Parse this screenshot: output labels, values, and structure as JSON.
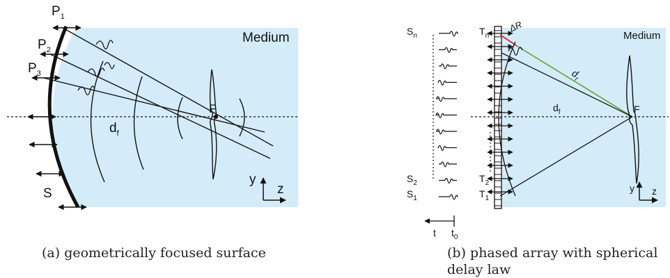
{
  "panel_a": {
    "medium_label": "Medium",
    "points": [
      {
        "main": "P",
        "sub": "1"
      },
      {
        "main": "P",
        "sub": "2"
      },
      {
        "main": "P",
        "sub": "3"
      }
    ],
    "distance": {
      "main": "d",
      "sub": "f"
    },
    "focus_label": "F",
    "surface_label": "S",
    "axis_y": "y",
    "axis_z": "z",
    "caption": "(a) geometrically focused surface"
  },
  "panel_b": {
    "medium_label": "Medium",
    "signals": [
      {
        "main": "S",
        "sub": "n"
      },
      {
        "main": "S",
        "sub": "2"
      },
      {
        "main": "S",
        "sub": "1"
      }
    ],
    "transducers": [
      {
        "main": "T",
        "sub": "n"
      },
      {
        "main": "T",
        "sub": "2"
      },
      {
        "main": "T",
        "sub": "1"
      }
    ],
    "delta_r": "ΔR",
    "distance_r": {
      "main": "d",
      "sub": "r"
    },
    "distance_f": {
      "main": "d",
      "sub": "f"
    },
    "focus_label": "F",
    "time_label": "t",
    "time_zero": {
      "main": "t",
      "sub": "0"
    },
    "axis_y": "y",
    "axis_z": "z",
    "caption": "(b) phased array with spherical delay law"
  },
  "colors": {
    "medium": "#d4ecfa",
    "delta_r_line": "#e0242b",
    "d_r_line": "#5aa832"
  }
}
